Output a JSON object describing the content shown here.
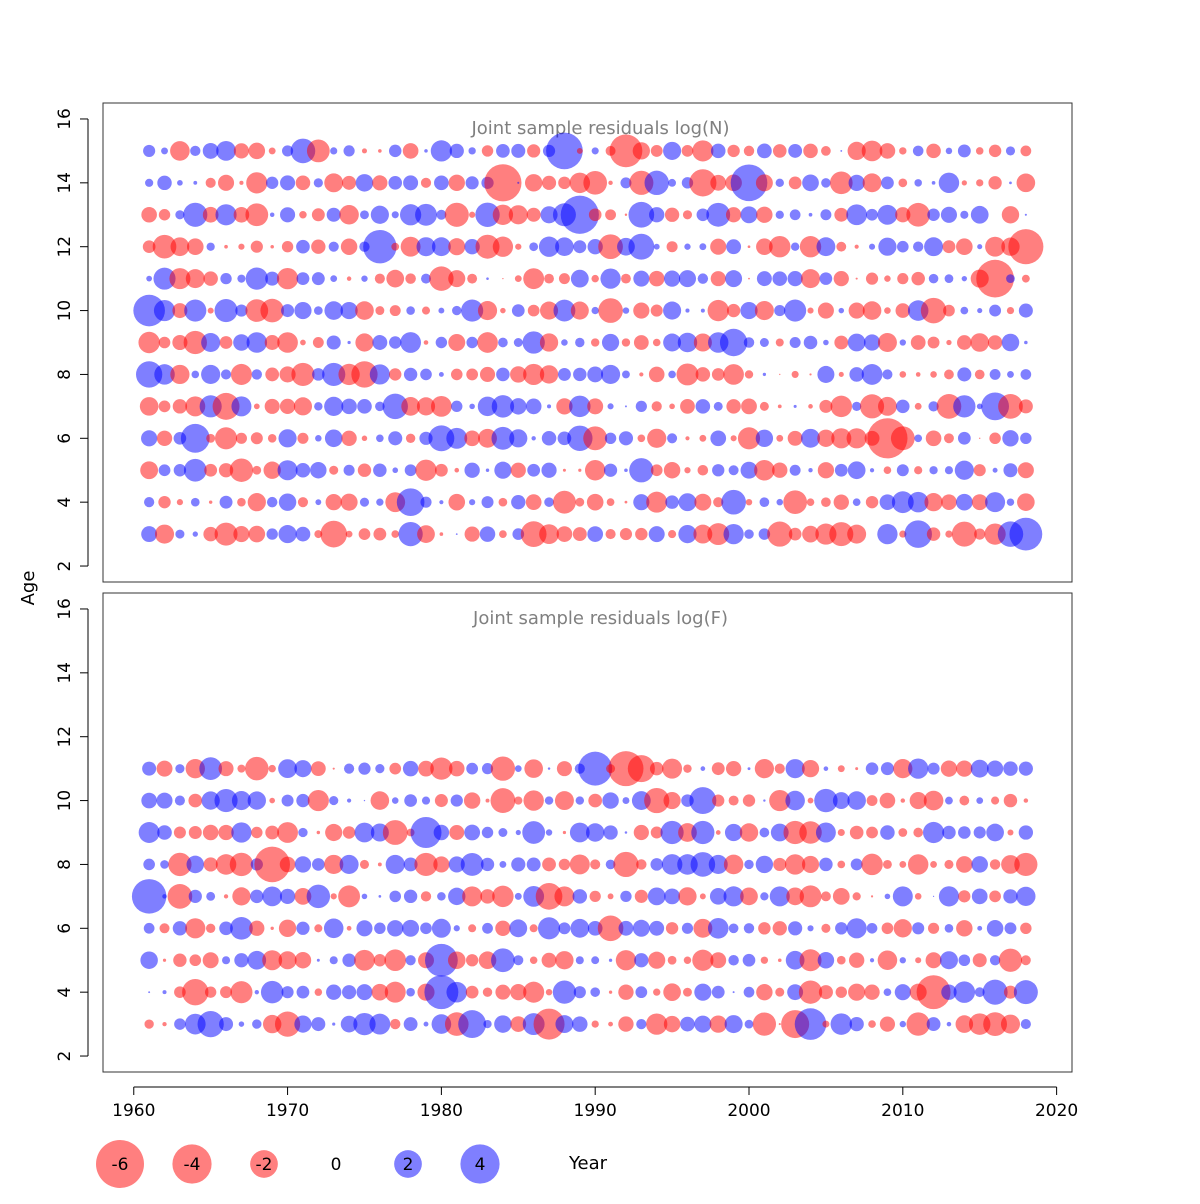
{
  "chart_data": {
    "type": "scatter",
    "description_kind": "bubble residual plot",
    "ylabel": "Age",
    "xlabel": "Year",
    "xlim": [
      1958,
      2021
    ],
    "x_ticks": [
      1960,
      1970,
      1980,
      1990,
      2000,
      2010,
      2020
    ],
    "y_ticks": [
      2,
      4,
      6,
      8,
      10,
      12,
      14,
      16
    ],
    "colors": {
      "positive": "#0000ff",
      "negative": "#ff0000",
      "opacity": 0.5
    },
    "panels": [
      {
        "title": "Joint sample residuals log(N)",
        "ylim": [
          1.5,
          16.5
        ],
        "years": [
          1961,
          2018
        ],
        "ages": [
          3,
          4,
          5,
          6,
          7,
          8,
          9,
          10,
          11,
          12,
          13,
          14,
          15
        ],
        "largest_residuals": [
          {
            "year": 1988,
            "age": 15,
            "value": 3.5
          },
          {
            "year": 1989,
            "age": 13,
            "value": 3.8
          },
          {
            "year": 2000,
            "age": 14,
            "value": 3.5
          },
          {
            "year": 1976,
            "age": 12,
            "value": 2.9
          },
          {
            "year": 1984,
            "age": 14,
            "value": -3.6
          },
          {
            "year": 2016,
            "age": 11,
            "value": -3.7
          },
          {
            "year": 2018,
            "age": 12,
            "value": -3.2
          },
          {
            "year": 2009,
            "age": 6,
            "value": -4.2
          },
          {
            "year": 1992,
            "age": 15,
            "value": -2.8
          },
          {
            "year": 1961,
            "age": 10,
            "value": 2.6
          },
          {
            "year": 2018,
            "age": 3,
            "value": 2.8
          }
        ]
      },
      {
        "title": "Joint sample residuals log(F)",
        "ylim": [
          1.5,
          16.5
        ],
        "years": [
          1961,
          2018
        ],
        "ages": [
          3,
          4,
          5,
          6,
          7,
          8,
          9,
          10,
          11
        ],
        "largest_residuals": [
          {
            "year": 1961,
            "age": 7,
            "value": 3.1
          },
          {
            "year": 1990,
            "age": 11,
            "value": 3.0
          },
          {
            "year": 1992,
            "age": 11,
            "value": -3.2
          },
          {
            "year": 1969,
            "age": 8,
            "value": -3.3
          },
          {
            "year": 1980,
            "age": 4,
            "value": 3.0
          },
          {
            "year": 1980,
            "age": 5,
            "value": 2.8
          },
          {
            "year": 2012,
            "age": 4,
            "value": -3.0
          },
          {
            "year": 2004,
            "age": 3,
            "value": 2.6
          },
          {
            "year": 1979,
            "age": 9,
            "value": 2.5
          },
          {
            "year": 1987,
            "age": 3,
            "value": -2.5
          }
        ]
      }
    ],
    "legend": [
      {
        "value": -6,
        "label": "-6"
      },
      {
        "value": -4,
        "label": "-4"
      },
      {
        "value": -2,
        "label": "-2"
      },
      {
        "value": 0,
        "label": "0"
      },
      {
        "value": 2,
        "label": "2"
      },
      {
        "value": 4,
        "label": "4"
      }
    ]
  }
}
